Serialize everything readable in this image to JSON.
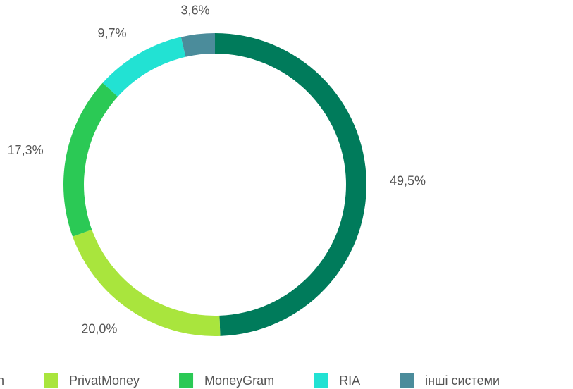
{
  "chart_data": {
    "type": "donut",
    "categories": [
      "Western Union",
      "PrivatMoney",
      "MoneyGram",
      "RIA",
      "інші системи"
    ],
    "values": [
      49.5,
      20.0,
      17.3,
      9.7,
      3.6
    ],
    "value_labels": [
      "49,5%",
      "20,0%",
      "17,3%",
      "9,7%",
      "3,6%"
    ],
    "colors": [
      "#007b5b",
      "#a9e53d",
      "#2bc955",
      "#22e2d3",
      "#4b8c9b"
    ],
    "legend": "bottom"
  }
}
